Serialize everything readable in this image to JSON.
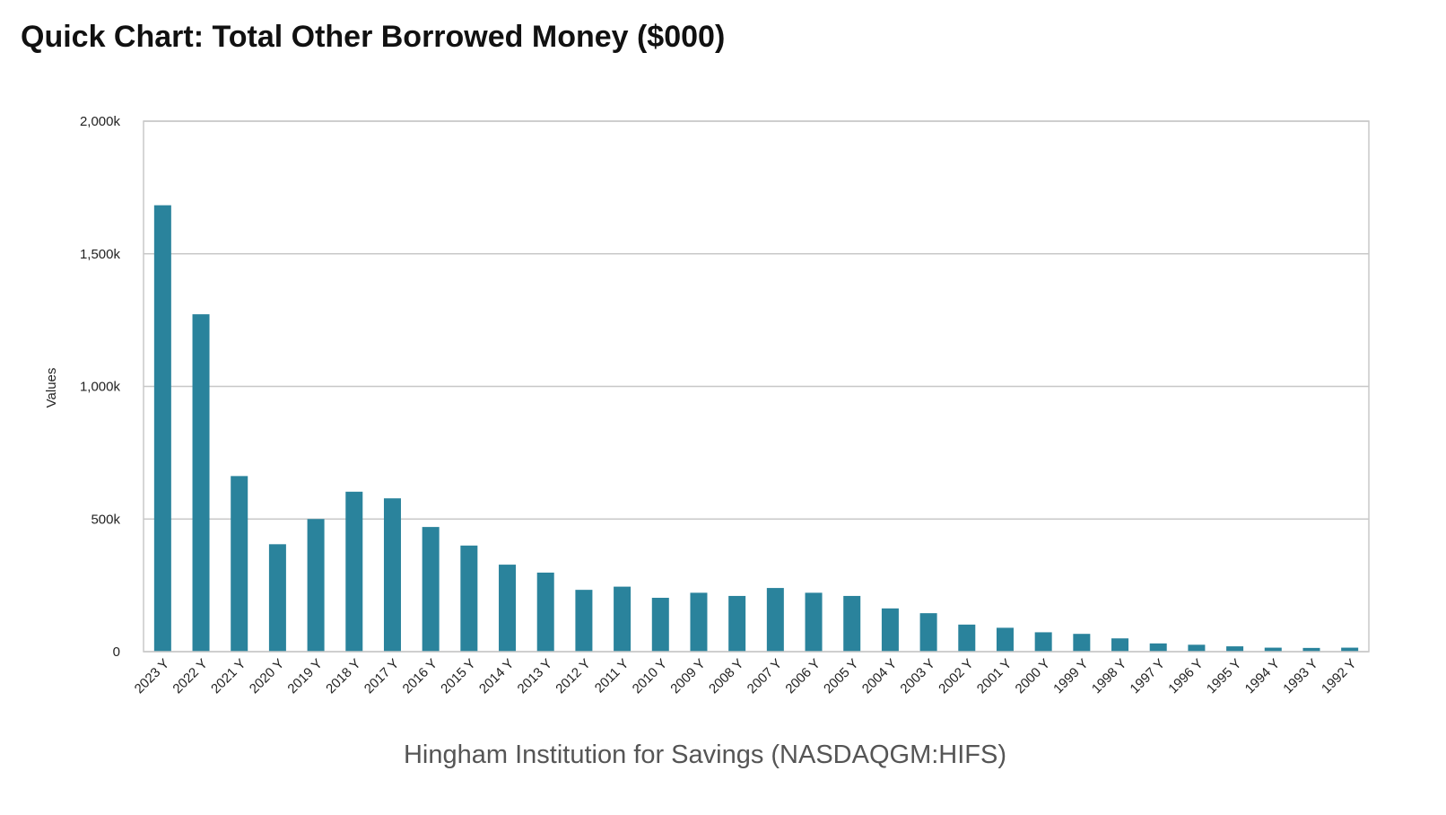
{
  "title": "Quick Chart: Total Other Borrowed Money ($000)",
  "colors": {
    "bar": "#2a839c",
    "grid": "#c8c8c8",
    "frame": "#c8c8c8"
  },
  "chart_data": {
    "type": "bar",
    "title": "Quick Chart: Total Other Borrowed Money ($000)",
    "xlabel": "Hingham Institution for Savings (NASDAQGM:HIFS)",
    "ylabel": "Values",
    "ylim": [
      0,
      2000000
    ],
    "grid": true,
    "y_ticks": [
      {
        "value": 0,
        "label": "0"
      },
      {
        "value": 500000,
        "label": "500k"
      },
      {
        "value": 1000000,
        "label": "1,000k"
      },
      {
        "value": 1500000,
        "label": "1,500k"
      },
      {
        "value": 2000000,
        "label": "2,000k"
      }
    ],
    "categories": [
      "2023 Y",
      "2022 Y",
      "2021 Y",
      "2020 Y",
      "2019 Y",
      "2018 Y",
      "2017 Y",
      "2016 Y",
      "2015 Y",
      "2014 Y",
      "2013 Y",
      "2012 Y",
      "2011 Y",
      "2010 Y",
      "2009 Y",
      "2008 Y",
      "2007 Y",
      "2006 Y",
      "2005 Y",
      "2004 Y",
      "2003 Y",
      "2002 Y",
      "2001 Y",
      "2000 Y",
      "1999 Y",
      "1998 Y",
      "1997 Y",
      "1996 Y",
      "1995 Y",
      "1994 Y",
      "1993 Y",
      "1992 Y"
    ],
    "values": [
      1683000,
      1272000,
      662000,
      405000,
      500000,
      603000,
      578000,
      470000,
      400000,
      328000,
      298000,
      233000,
      245000,
      203000,
      222000,
      210000,
      240000,
      222000,
      210000,
      163000,
      145000,
      102000,
      90000,
      73000,
      67000,
      50000,
      31000,
      26000,
      20000,
      15000,
      14000,
      15000
    ]
  }
}
